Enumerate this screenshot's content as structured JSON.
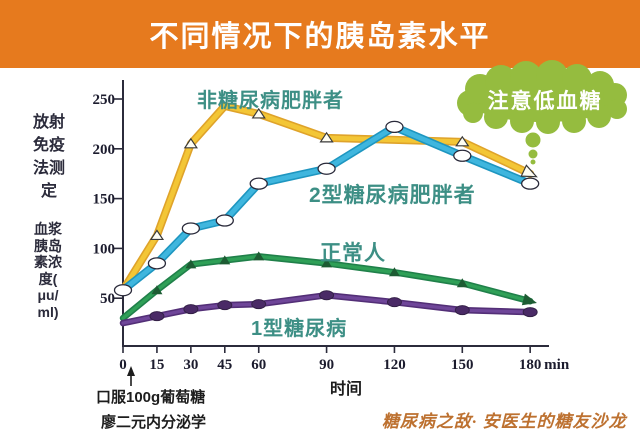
{
  "header": {
    "title": "不同情况下的胰岛素水平"
  },
  "y_axis_label_top_rows": [
    "放射",
    "免疫",
    "法测",
    "定"
  ],
  "y_axis_label_bottom_rows": [
    "血浆",
    "胰岛",
    "素浓",
    "度(",
    "μu/",
    "ml)"
  ],
  "annotations": {
    "cloud_text": "注意低血糖",
    "glucose_note": "口服100g葡萄糖",
    "source_note": "廖二元内分泌学",
    "watermark": "糖尿病之敌· 安医生的糖友沙龙"
  },
  "colors": {
    "header_bg": "#E67A1E",
    "cloud_green": "#95BC3F",
    "series_label_teal": "#3D8F85",
    "axis_ink": "#2B2B3B",
    "watermark_orange": "#BD7130"
  },
  "chart_data": {
    "type": "line",
    "title": "不同情况下的胰岛素水平",
    "xlabel": "时间",
    "ylabel": "血浆胰岛素浓度(μu/ml) 放射免疫法测定",
    "x": [
      0,
      15,
      30,
      45,
      60,
      90,
      120,
      150,
      180
    ],
    "x_unit": "min",
    "yticks": [
      50,
      100,
      150,
      200,
      250
    ],
    "ylim": [
      0,
      265
    ],
    "grid": false,
    "legend_position": "inline-labels",
    "series": [
      {
        "name": "非糖尿病肥胖者",
        "color": "#F3C636",
        "edge_color": "#DFA32A",
        "line_width": 8,
        "marker": "open-triangle",
        "marker_at": [
          1,
          2,
          4,
          5,
          7
        ],
        "end": "open-arrow",
        "values": [
          58,
          113,
          205,
          243,
          235,
          211,
          209,
          207,
          175
        ]
      },
      {
        "name": "2型糖尿病肥胖者",
        "color": "#3FB6DE",
        "edge_color": "#1E96C0",
        "line_width": 8,
        "marker": "open-ellipse",
        "marker_at": [
          0,
          1,
          2,
          3,
          4,
          5,
          6,
          7,
          8
        ],
        "end": null,
        "values": [
          58,
          85,
          120,
          128,
          165,
          180,
          222,
          193,
          165
        ]
      },
      {
        "name": "正常人",
        "color": "#2FA057",
        "edge_color": "#20804A",
        "line_width": 6.5,
        "marker": "filled-triangle",
        "marker_color": "#1D5C33",
        "marker_at": [
          1,
          2,
          3,
          4,
          5,
          6,
          7
        ],
        "end": "filled-arrow",
        "values": [
          30,
          58,
          84,
          88,
          92,
          85,
          76,
          65,
          47
        ]
      },
      {
        "name": "1型糖尿病",
        "color": "#6F4699",
        "edge_color": "#532F77",
        "line_width": 6.5,
        "marker": "filled-ellipse",
        "marker_color": "#4A2A66",
        "marker_at": [
          1,
          2,
          3,
          4,
          5,
          6,
          7,
          8
        ],
        "end": null,
        "values": [
          25,
          32,
          39,
          43,
          44,
          53,
          46,
          38,
          36
        ]
      }
    ]
  }
}
